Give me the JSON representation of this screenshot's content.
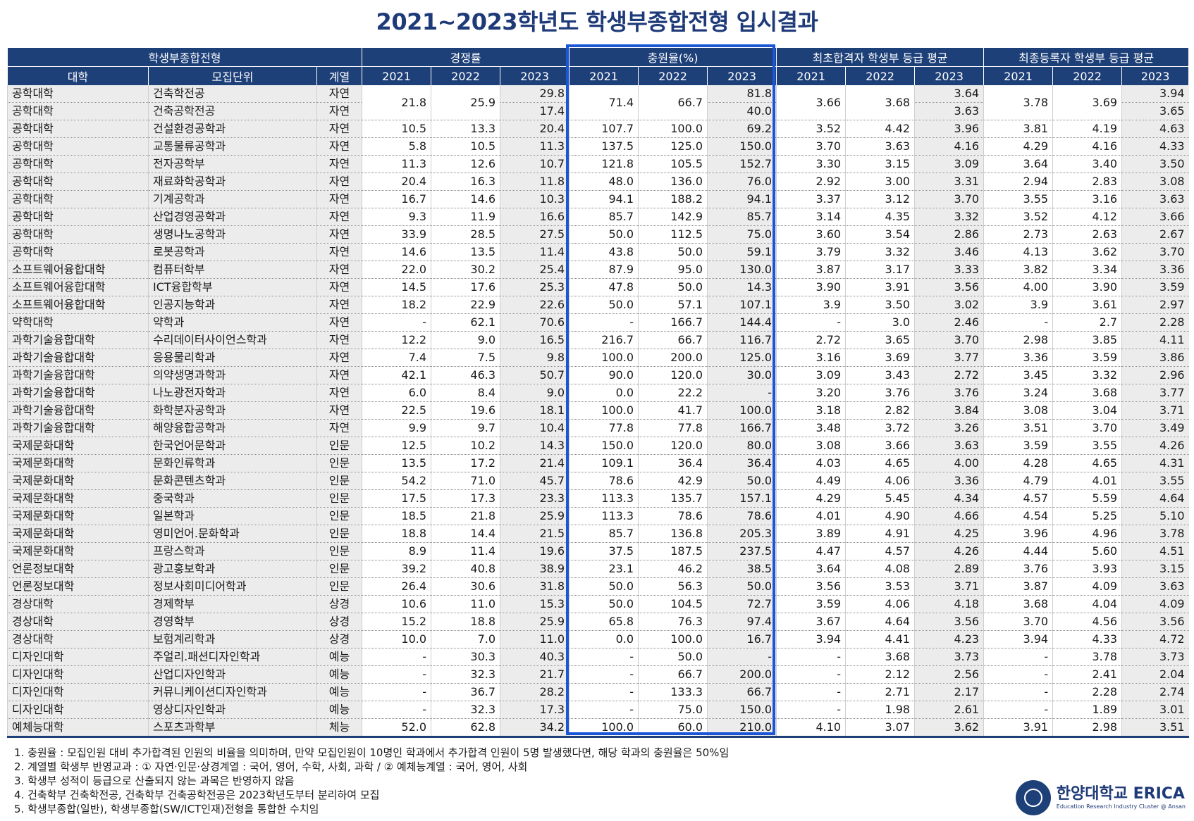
{
  "title": "2021~2023학년도 학생부종합전형 입시결과",
  "header": {
    "group1": "학생부종합전형",
    "group2": "경쟁률",
    "group3": "충원율(%)",
    "group4": "최초합격자 학생부 등급 평균",
    "group5": "최종등록자 학생부 등급 평균",
    "col_college": "대학",
    "col_unit": "모집단위",
    "col_track": "계열",
    "years": [
      "2021",
      "2022",
      "2023"
    ]
  },
  "rows": [
    [
      "공학대학",
      "건축학전공",
      "자연",
      "21.8",
      "25.9",
      "29.8",
      "71.4",
      "66.7",
      "81.8",
      "3.66",
      "3.68",
      "3.64",
      "3.78",
      "3.69",
      "3.94"
    ],
    [
      "공학대학",
      "건축공학전공",
      "자연",
      "",
      "",
      "17.4",
      "",
      "",
      "40.0",
      "",
      "",
      "3.63",
      "",
      "",
      "3.65"
    ],
    [
      "공학대학",
      "건설환경공학과",
      "자연",
      "10.5",
      "13.3",
      "20.4",
      "107.7",
      "100.0",
      "69.2",
      "3.52",
      "4.42",
      "3.96",
      "3.81",
      "4.19",
      "4.63"
    ],
    [
      "공학대학",
      "교통물류공학과",
      "자연",
      "5.8",
      "10.5",
      "11.3",
      "137.5",
      "125.0",
      "150.0",
      "3.70",
      "3.63",
      "4.16",
      "4.29",
      "4.16",
      "4.33"
    ],
    [
      "공학대학",
      "전자공학부",
      "자연",
      "11.3",
      "12.6",
      "10.7",
      "121.8",
      "105.5",
      "152.7",
      "3.30",
      "3.15",
      "3.09",
      "3.64",
      "3.40",
      "3.50"
    ],
    [
      "공학대학",
      "재료화학공학과",
      "자연",
      "20.4",
      "16.3",
      "11.8",
      "48.0",
      "136.0",
      "76.0",
      "2.92",
      "3.00",
      "3.31",
      "2.94",
      "2.83",
      "3.08"
    ],
    [
      "공학대학",
      "기계공학과",
      "자연",
      "16.7",
      "14.6",
      "10.3",
      "94.1",
      "188.2",
      "94.1",
      "3.37",
      "3.12",
      "3.70",
      "3.55",
      "3.16",
      "3.63"
    ],
    [
      "공학대학",
      "산업경영공학과",
      "자연",
      "9.3",
      "11.9",
      "16.6",
      "85.7",
      "142.9",
      "85.7",
      "3.14",
      "4.35",
      "3.32",
      "3.52",
      "4.12",
      "3.66"
    ],
    [
      "공학대학",
      "생명나노공학과",
      "자연",
      "33.9",
      "28.5",
      "27.5",
      "50.0",
      "112.5",
      "75.0",
      "3.60",
      "3.54",
      "2.86",
      "2.73",
      "2.63",
      "2.67"
    ],
    [
      "공학대학",
      "로봇공학과",
      "자연",
      "14.6",
      "13.5",
      "11.4",
      "43.8",
      "50.0",
      "59.1",
      "3.79",
      "3.32",
      "3.46",
      "4.13",
      "3.62",
      "3.70"
    ],
    [
      "소프트웨어융합대학",
      "컴퓨터학부",
      "자연",
      "22.0",
      "30.2",
      "25.4",
      "87.9",
      "95.0",
      "130.0",
      "3.87",
      "3.17",
      "3.33",
      "3.82",
      "3.34",
      "3.36"
    ],
    [
      "소프트웨어융합대학",
      "ICT융합학부",
      "자연",
      "14.5",
      "17.6",
      "25.3",
      "47.8",
      "50.0",
      "14.3",
      "3.90",
      "3.91",
      "3.56",
      "4.00",
      "3.90",
      "3.59"
    ],
    [
      "소프트웨어융합대학",
      "인공지능학과",
      "자연",
      "18.2",
      "22.9",
      "22.6",
      "50.0",
      "57.1",
      "107.1",
      "3.9",
      "3.50",
      "3.02",
      "3.9",
      "3.61",
      "2.97"
    ],
    [
      "약학대학",
      "약학과",
      "자연",
      "-",
      "62.1",
      "70.6",
      "-",
      "166.7",
      "144.4",
      "-",
      "3.0",
      "2.46",
      "-",
      "2.7",
      "2.28"
    ],
    [
      "과학기술융합대학",
      "수리데이터사이언스학과",
      "자연",
      "12.2",
      "9.0",
      "16.5",
      "216.7",
      "66.7",
      "116.7",
      "2.72",
      "3.65",
      "3.70",
      "2.98",
      "3.85",
      "4.11"
    ],
    [
      "과학기술융합대학",
      "응용물리학과",
      "자연",
      "7.4",
      "7.5",
      "9.8",
      "100.0",
      "200.0",
      "125.0",
      "3.16",
      "3.69",
      "3.77",
      "3.36",
      "3.59",
      "3.86"
    ],
    [
      "과학기술융합대학",
      "의약생명과학과",
      "자연",
      "42.1",
      "46.3",
      "50.7",
      "90.0",
      "120.0",
      "30.0",
      "3.09",
      "3.43",
      "2.72",
      "3.45",
      "3.32",
      "2.96"
    ],
    [
      "과학기술융합대학",
      "나노광전자학과",
      "자연",
      "6.0",
      "8.4",
      "9.0",
      "0.0",
      "22.2",
      "-",
      "3.20",
      "3.76",
      "3.76",
      "3.24",
      "3.68",
      "3.77"
    ],
    [
      "과학기술융합대학",
      "화학분자공학과",
      "자연",
      "22.5",
      "19.6",
      "18.1",
      "100.0",
      "41.7",
      "100.0",
      "3.18",
      "2.82",
      "3.84",
      "3.08",
      "3.04",
      "3.71"
    ],
    [
      "과학기술융합대학",
      "해양융합공학과",
      "자연",
      "9.9",
      "9.7",
      "10.4",
      "77.8",
      "77.8",
      "166.7",
      "3.48",
      "3.72",
      "3.26",
      "3.51",
      "3.70",
      "3.49"
    ],
    [
      "국제문화대학",
      "한국언어문학과",
      "인문",
      "12.5",
      "10.2",
      "14.3",
      "150.0",
      "120.0",
      "80.0",
      "3.08",
      "3.66",
      "3.63",
      "3.59",
      "3.55",
      "4.26"
    ],
    [
      "국제문화대학",
      "문화인류학과",
      "인문",
      "13.5",
      "17.2",
      "21.4",
      "109.1",
      "36.4",
      "36.4",
      "4.03",
      "4.65",
      "4.00",
      "4.28",
      "4.65",
      "4.31"
    ],
    [
      "국제문화대학",
      "문화콘텐츠학과",
      "인문",
      "54.2",
      "71.0",
      "45.7",
      "78.6",
      "42.9",
      "50.0",
      "4.49",
      "4.06",
      "3.36",
      "4.79",
      "4.01",
      "3.55"
    ],
    [
      "국제문화대학",
      "중국학과",
      "인문",
      "17.5",
      "17.3",
      "23.3",
      "113.3",
      "135.7",
      "157.1",
      "4.29",
      "5.45",
      "4.34",
      "4.57",
      "5.59",
      "4.64"
    ],
    [
      "국제문화대학",
      "일본학과",
      "인문",
      "18.5",
      "21.8",
      "25.9",
      "113.3",
      "78.6",
      "78.6",
      "4.01",
      "4.90",
      "4.66",
      "4.54",
      "5.25",
      "5.10"
    ],
    [
      "국제문화대학",
      "영미언어.문화학과",
      "인문",
      "18.8",
      "14.4",
      "21.5",
      "85.7",
      "136.8",
      "205.3",
      "3.89",
      "4.91",
      "4.25",
      "3.96",
      "4.96",
      "3.78"
    ],
    [
      "국제문화대학",
      "프랑스학과",
      "인문",
      "8.9",
      "11.4",
      "19.6",
      "37.5",
      "187.5",
      "237.5",
      "4.47",
      "4.57",
      "4.26",
      "4.44",
      "5.60",
      "4.51"
    ],
    [
      "언론정보대학",
      "광고홍보학과",
      "인문",
      "39.2",
      "40.8",
      "38.9",
      "23.1",
      "46.2",
      "38.5",
      "3.64",
      "4.08",
      "2.89",
      "3.76",
      "3.93",
      "3.15"
    ],
    [
      "언론정보대학",
      "정보사회미디어학과",
      "인문",
      "26.4",
      "30.6",
      "31.8",
      "50.0",
      "56.3",
      "50.0",
      "3.56",
      "3.53",
      "3.71",
      "3.87",
      "4.09",
      "3.63"
    ],
    [
      "경상대학",
      "경제학부",
      "상경",
      "10.6",
      "11.0",
      "15.3",
      "50.0",
      "104.5",
      "72.7",
      "3.59",
      "4.06",
      "4.18",
      "3.68",
      "4.04",
      "4.09"
    ],
    [
      "경상대학",
      "경영학부",
      "상경",
      "15.2",
      "18.8",
      "25.9",
      "65.8",
      "76.3",
      "97.4",
      "3.67",
      "4.64",
      "3.56",
      "3.70",
      "4.56",
      "3.56"
    ],
    [
      "경상대학",
      "보험계리학과",
      "상경",
      "10.0",
      "7.0",
      "11.0",
      "0.0",
      "100.0",
      "16.7",
      "3.94",
      "4.41",
      "4.23",
      "3.94",
      "4.33",
      "4.72"
    ],
    [
      "디자인대학",
      "주얼리.패션디자인학과",
      "예능",
      "-",
      "30.3",
      "40.3",
      "-",
      "50.0",
      "-",
      "-",
      "3.68",
      "3.73",
      "-",
      "3.78",
      "3.73"
    ],
    [
      "디자인대학",
      "산업디자인학과",
      "예능",
      "-",
      "32.3",
      "21.7",
      "-",
      "66.7",
      "200.0",
      "-",
      "2.12",
      "2.56",
      "-",
      "2.41",
      "2.04"
    ],
    [
      "디자인대학",
      "커뮤니케이션디자인학과",
      "예능",
      "-",
      "36.7",
      "28.2",
      "-",
      "133.3",
      "66.7",
      "-",
      "2.71",
      "2.17",
      "-",
      "2.28",
      "2.74"
    ],
    [
      "디자인대학",
      "영상디자인학과",
      "예능",
      "-",
      "32.3",
      "17.3",
      "-",
      "75.0",
      "150.0",
      "-",
      "1.98",
      "2.61",
      "-",
      "1.89",
      "3.01"
    ],
    [
      "예체능대학",
      "스포츠과학부",
      "체능",
      "52.0",
      "62.8",
      "34.2",
      "100.0",
      "60.0",
      "210.0",
      "4.10",
      "3.07",
      "3.62",
      "3.91",
      "2.98",
      "3.51"
    ]
  ],
  "notes": [
    "1. 충원율 : 모집인원 대비 추가합격된 인원의 비율을 의미하며, 만약 모집인원이 10명인 학과에서 추가합격 인원이 5명 발생했다면, 해당 학과의 충원율은 50%임",
    "2. 계열별 학생부 반영교과 : ① 자연·인문·상경계열 : 국어, 영어, 수학, 사회, 과학 / ② 예체능계열 : 국어, 영어, 사회",
    "3. 학생부 성적이 등급으로 산출되지 않는 과목은 반영하지 않음",
    "4. 건축학부 건축학전공, 건축학부 건축공학전공은 2023학년도부터 분리하여 모집",
    "5. 학생부종합(일반), 학생부종합(SW/ICT인재)전형을 통합한 수치임"
  ],
  "logo": {
    "name": "한양대학교 ERICA",
    "sub": "Education Research Industry Cluster @ Ansan"
  },
  "colors": {
    "header_bg": "#1e4079",
    "highlight": "#1a56d6",
    "gray_cell": "#ececec"
  }
}
